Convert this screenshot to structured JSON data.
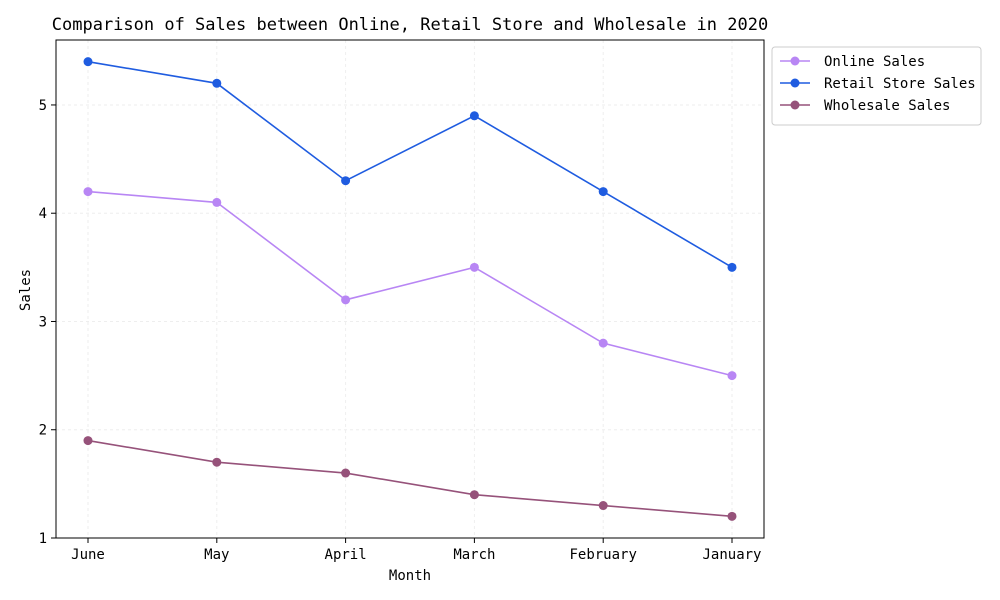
{
  "chart_data": {
    "type": "line",
    "title": "Comparison of Sales between Online, Retail Store and Wholesale in 2020",
    "xlabel": "Month",
    "ylabel": "Sales",
    "categories": [
      "June",
      "May",
      "April",
      "March",
      "February",
      "January"
    ],
    "ylim": [
      1,
      5.6
    ],
    "yticks": [
      1,
      2,
      3,
      4,
      5
    ],
    "grid": true,
    "legend_position": "outside-top-right",
    "series": [
      {
        "name": "Online Sales",
        "color": "#b886f4",
        "values": [
          4.2,
          4.1,
          3.2,
          3.5,
          2.8,
          2.5
        ]
      },
      {
        "name": "Retail Store Sales",
        "color": "#1f5ce0",
        "values": [
          5.4,
          5.2,
          4.3,
          4.9,
          4.2,
          3.5
        ]
      },
      {
        "name": "Wholesale Sales",
        "color": "#96527a",
        "values": [
          1.9,
          1.7,
          1.6,
          1.4,
          1.3,
          1.2
        ]
      }
    ]
  }
}
